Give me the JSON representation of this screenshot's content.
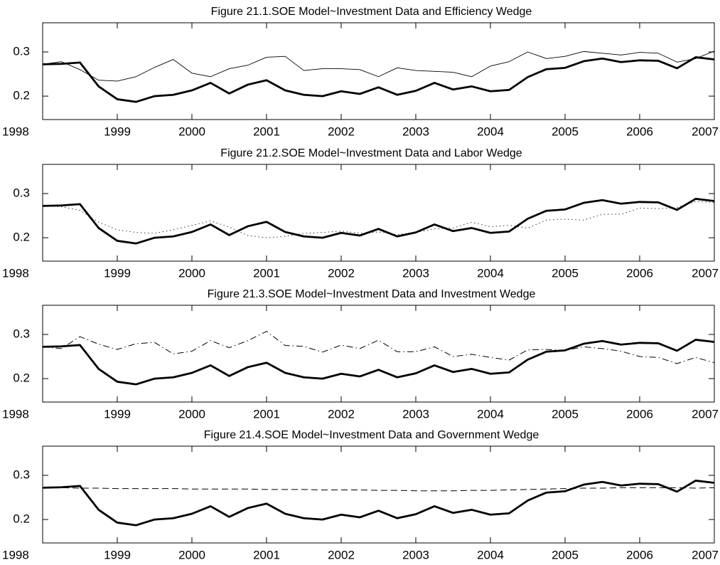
{
  "chart_data": [
    {
      "type": "line",
      "title": "Figure 21.1.SOE Model~Investment Data and Efficiency Wedge",
      "x": [
        1998,
        1998.25,
        1998.5,
        1998.75,
        1999,
        1999.25,
        1999.5,
        1999.75,
        2000,
        2000.25,
        2000.5,
        2000.75,
        2001,
        2001.25,
        2001.5,
        2001.75,
        2002,
        2002.25,
        2002.5,
        2002.75,
        2003,
        2003.25,
        2003.5,
        2003.75,
        2004,
        2004.25,
        2004.5,
        2004.75,
        2005,
        2005.25,
        2005.5,
        2005.75,
        2006,
        2006.25,
        2006.5,
        2006.75,
        2007
      ],
      "xlim": [
        1998,
        2007
      ],
      "xticks": [
        1998,
        1999,
        2000,
        2001,
        2002,
        2003,
        2004,
        2005,
        2006,
        2007
      ],
      "ylim": [
        0.147,
        0.366
      ],
      "yticks": [
        0.2,
        0.3
      ],
      "series": [
        {
          "color": "#000000",
          "style": "thick",
          "values": [
            0.272,
            0.273,
            0.276,
            0.222,
            0.193,
            0.187,
            0.2,
            0.203,
            0.213,
            0.23,
            0.206,
            0.226,
            0.236,
            0.213,
            0.203,
            0.2,
            0.211,
            0.205,
            0.22,
            0.203,
            0.212,
            0.23,
            0.215,
            0.222,
            0.211,
            0.214,
            0.243,
            0.261,
            0.264,
            0.279,
            0.285,
            0.277,
            0.281,
            0.28,
            0.263,
            0.288,
            0.283
          ]
        },
        {
          "color": "#000000",
          "style": "solid",
          "values": [
            0.272,
            0.278,
            0.26,
            0.236,
            0.234,
            0.244,
            0.265,
            0.283,
            0.252,
            0.244,
            0.262,
            0.27,
            0.288,
            0.29,
            0.258,
            0.262,
            0.262,
            0.26,
            0.244,
            0.264,
            0.258,
            0.256,
            0.254,
            0.244,
            0.268,
            0.278,
            0.3,
            0.285,
            0.29,
            0.301,
            0.297,
            0.293,
            0.299,
            0.297,
            0.277,
            0.285,
            0.302
          ]
        }
      ]
    },
    {
      "type": "line",
      "title": "Figure 21.2.SOE Model~Investment Data and Labor Wedge",
      "x": [
        1998,
        1998.25,
        1998.5,
        1998.75,
        1999,
        1999.25,
        1999.5,
        1999.75,
        2000,
        2000.25,
        2000.5,
        2000.75,
        2001,
        2001.25,
        2001.5,
        2001.75,
        2002,
        2002.25,
        2002.5,
        2002.75,
        2003,
        2003.25,
        2003.5,
        2003.75,
        2004,
        2004.25,
        2004.5,
        2004.75,
        2005,
        2005.25,
        2005.5,
        2005.75,
        2006,
        2006.25,
        2006.5,
        2006.75,
        2007
      ],
      "xlim": [
        1998,
        2007
      ],
      "xticks": [
        1998,
        1999,
        2000,
        2001,
        2002,
        2003,
        2004,
        2005,
        2006,
        2007
      ],
      "ylim": [
        0.147,
        0.366
      ],
      "yticks": [
        0.2,
        0.3
      ],
      "series": [
        {
          "color": "#000000",
          "style": "thick",
          "values": [
            0.272,
            0.273,
            0.276,
            0.222,
            0.193,
            0.187,
            0.2,
            0.203,
            0.213,
            0.23,
            0.206,
            0.226,
            0.236,
            0.213,
            0.203,
            0.2,
            0.211,
            0.205,
            0.22,
            0.203,
            0.212,
            0.23,
            0.215,
            0.222,
            0.211,
            0.214,
            0.243,
            0.261,
            0.264,
            0.279,
            0.285,
            0.277,
            0.281,
            0.28,
            0.263,
            0.288,
            0.283
          ]
        },
        {
          "color": "#000000",
          "style": "dotted",
          "values": [
            0.272,
            0.27,
            0.262,
            0.235,
            0.218,
            0.212,
            0.21,
            0.218,
            0.228,
            0.238,
            0.224,
            0.205,
            0.2,
            0.203,
            0.21,
            0.212,
            0.215,
            0.21,
            0.213,
            0.207,
            0.212,
            0.22,
            0.222,
            0.235,
            0.225,
            0.228,
            0.222,
            0.24,
            0.242,
            0.24,
            0.253,
            0.253,
            0.267,
            0.266,
            0.268,
            0.282,
            0.28
          ]
        }
      ]
    },
    {
      "type": "line",
      "title": "Figure 21.3.SOE Model~Investment Data and Investment Wedge",
      "x": [
        1998,
        1998.25,
        1998.5,
        1998.75,
        1999,
        1999.25,
        1999.5,
        1999.75,
        2000,
        2000.25,
        2000.5,
        2000.75,
        2001,
        2001.25,
        2001.5,
        2001.75,
        2002,
        2002.25,
        2002.5,
        2002.75,
        2003,
        2003.25,
        2003.5,
        2003.75,
        2004,
        2004.25,
        2004.5,
        2004.75,
        2005,
        2005.25,
        2005.5,
        2005.75,
        2006,
        2006.25,
        2006.5,
        2006.75,
        2007
      ],
      "xlim": [
        1998,
        2007
      ],
      "xticks": [
        1998,
        1999,
        2000,
        2001,
        2002,
        2003,
        2004,
        2005,
        2006,
        2007
      ],
      "ylim": [
        0.147,
        0.366
      ],
      "yticks": [
        0.2,
        0.3
      ],
      "series": [
        {
          "color": "#000000",
          "style": "thick",
          "values": [
            0.272,
            0.273,
            0.276,
            0.222,
            0.193,
            0.187,
            0.2,
            0.203,
            0.213,
            0.23,
            0.206,
            0.226,
            0.236,
            0.213,
            0.203,
            0.2,
            0.211,
            0.205,
            0.22,
            0.203,
            0.212,
            0.23,
            0.215,
            0.222,
            0.211,
            0.214,
            0.243,
            0.261,
            0.264,
            0.279,
            0.285,
            0.277,
            0.281,
            0.28,
            0.263,
            0.288,
            0.283
          ]
        },
        {
          "color": "#000000",
          "style": "dash-dot",
          "values": [
            0.272,
            0.268,
            0.295,
            0.278,
            0.266,
            0.279,
            0.282,
            0.256,
            0.262,
            0.286,
            0.27,
            0.286,
            0.307,
            0.275,
            0.273,
            0.26,
            0.276,
            0.268,
            0.287,
            0.261,
            0.261,
            0.272,
            0.25,
            0.255,
            0.248,
            0.242,
            0.265,
            0.266,
            0.264,
            0.272,
            0.268,
            0.262,
            0.25,
            0.248,
            0.234,
            0.248,
            0.236
          ]
        }
      ]
    },
    {
      "type": "line",
      "title": "Figure 21.4.SOE Model~Investment Data and Government Wedge",
      "x": [
        1998,
        1998.25,
        1998.5,
        1998.75,
        1999,
        1999.25,
        1999.5,
        1999.75,
        2000,
        2000.25,
        2000.5,
        2000.75,
        2001,
        2001.25,
        2001.5,
        2001.75,
        2002,
        2002.25,
        2002.5,
        2002.75,
        2003,
        2003.25,
        2003.5,
        2003.75,
        2004,
        2004.25,
        2004.5,
        2004.75,
        2005,
        2005.25,
        2005.5,
        2005.75,
        2006,
        2006.25,
        2006.5,
        2006.75,
        2007
      ],
      "xlim": [
        1998,
        2007
      ],
      "xticks": [
        1998,
        1999,
        2000,
        2001,
        2002,
        2003,
        2004,
        2005,
        2006,
        2007
      ],
      "ylim": [
        0.147,
        0.366
      ],
      "yticks": [
        0.2,
        0.3
      ],
      "series": [
        {
          "color": "#000000",
          "style": "thick",
          "values": [
            0.272,
            0.273,
            0.276,
            0.222,
            0.193,
            0.187,
            0.2,
            0.203,
            0.213,
            0.23,
            0.206,
            0.226,
            0.236,
            0.213,
            0.203,
            0.2,
            0.211,
            0.205,
            0.22,
            0.203,
            0.212,
            0.23,
            0.215,
            0.222,
            0.211,
            0.214,
            0.243,
            0.261,
            0.264,
            0.279,
            0.285,
            0.277,
            0.281,
            0.28,
            0.263,
            0.288,
            0.283
          ]
        },
        {
          "color": "#000000",
          "style": "dashed",
          "values": [
            0.272,
            0.272,
            0.271,
            0.271,
            0.27,
            0.27,
            0.27,
            0.27,
            0.269,
            0.269,
            0.269,
            0.269,
            0.268,
            0.268,
            0.268,
            0.267,
            0.267,
            0.267,
            0.266,
            0.266,
            0.265,
            0.265,
            0.265,
            0.266,
            0.266,
            0.267,
            0.268,
            0.269,
            0.27,
            0.271,
            0.271,
            0.272,
            0.272,
            0.272,
            0.272,
            0.271,
            0.272
          ]
        }
      ]
    }
  ]
}
